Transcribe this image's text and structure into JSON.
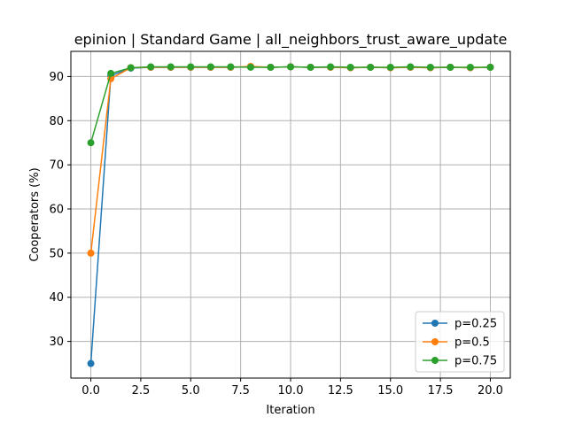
{
  "chart_data": {
    "type": "line",
    "title": "epinion | Standard Game | all_neighbors_trust_aware_update",
    "xlabel": "Iteration",
    "ylabel": "Cooperators (%)",
    "xlim": [
      -1,
      21
    ],
    "ylim": [
      21.7,
      95.7
    ],
    "xticks": [
      0,
      2.5,
      5,
      7.5,
      10,
      12.5,
      15,
      17.5,
      20
    ],
    "xtick_labels": [
      "0.0",
      "2.5",
      "5.0",
      "7.5",
      "10.0",
      "12.5",
      "15.0",
      "17.5",
      "20.0"
    ],
    "yticks": [
      30,
      40,
      50,
      60,
      70,
      80,
      90
    ],
    "ytick_labels": [
      "30",
      "40",
      "50",
      "60",
      "70",
      "80",
      "90"
    ],
    "grid": true,
    "legend_position": "lower-right",
    "x": [
      0,
      1,
      2,
      3,
      4,
      5,
      6,
      7,
      8,
      9,
      10,
      11,
      12,
      13,
      14,
      15,
      16,
      17,
      18,
      19,
      20
    ],
    "series": [
      {
        "name": "p=0.25",
        "color": "#1f77b4",
        "values": [
          25,
          90.2,
          91.9,
          92.1,
          92.1,
          92.1,
          92.1,
          92.1,
          92.2,
          92.1,
          92.2,
          92.1,
          92.1,
          92.0,
          92.1,
          92.0,
          92.1,
          92.0,
          92.1,
          92.0,
          92.1
        ]
      },
      {
        "name": "p=0.5",
        "color": "#ff7f0e",
        "values": [
          50,
          89.5,
          92.0,
          92.1,
          92.1,
          92.1,
          92.1,
          92.1,
          92.3,
          92.1,
          92.2,
          92.1,
          92.1,
          92.0,
          92.1,
          92.0,
          92.1,
          92.0,
          92.1,
          92.0,
          92.1
        ]
      },
      {
        "name": "p=0.75",
        "color": "#2ca02c",
        "values": [
          75,
          90.7,
          92.0,
          92.2,
          92.2,
          92.2,
          92.2,
          92.2,
          92.1,
          92.1,
          92.2,
          92.1,
          92.2,
          92.1,
          92.1,
          92.1,
          92.2,
          92.1,
          92.1,
          92.1,
          92.1
        ]
      }
    ]
  }
}
